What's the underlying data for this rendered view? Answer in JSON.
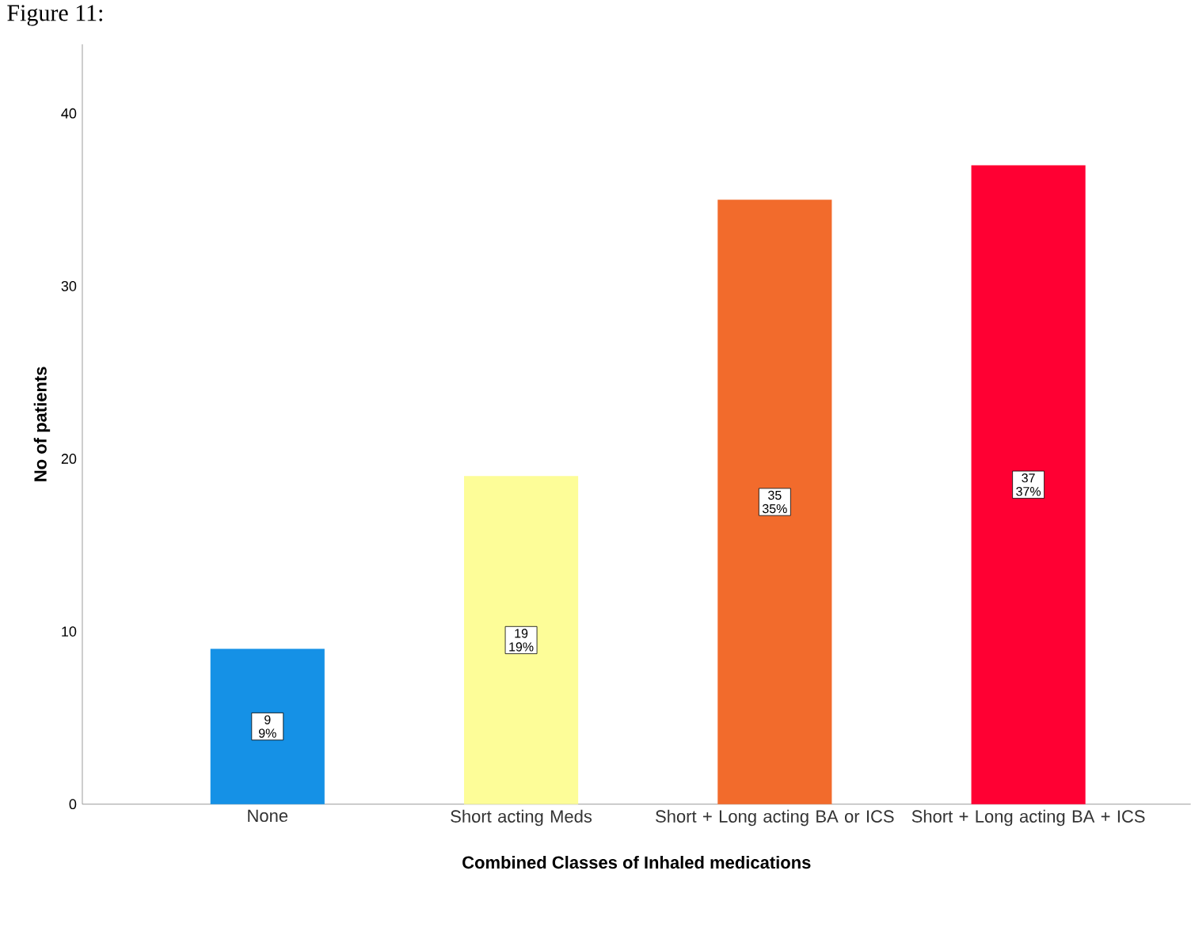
{
  "chart_data": {
    "type": "bar",
    "xlabel": "Combined Classes of Inhaled medications",
    "ylabel": "No of patients",
    "annotations": [
      "Figure 11:"
    ],
    "categories": [
      "None",
      "Short acting Meds",
      "Short + Long acting BA or ICS",
      "Short + Long acting BA + ICS"
    ],
    "values": [
      9,
      19,
      35,
      37
    ],
    "colors": [
      "#1591e6",
      "#fdfd98",
      "#f26b2c",
      "#ff0033"
    ],
    "value_labels": [
      "9 9%",
      "19 19%",
      "35 35%",
      "37 37%"
    ],
    "ylim": [
      0,
      44
    ],
    "yticks": [
      0,
      10,
      20,
      30,
      40
    ]
  }
}
